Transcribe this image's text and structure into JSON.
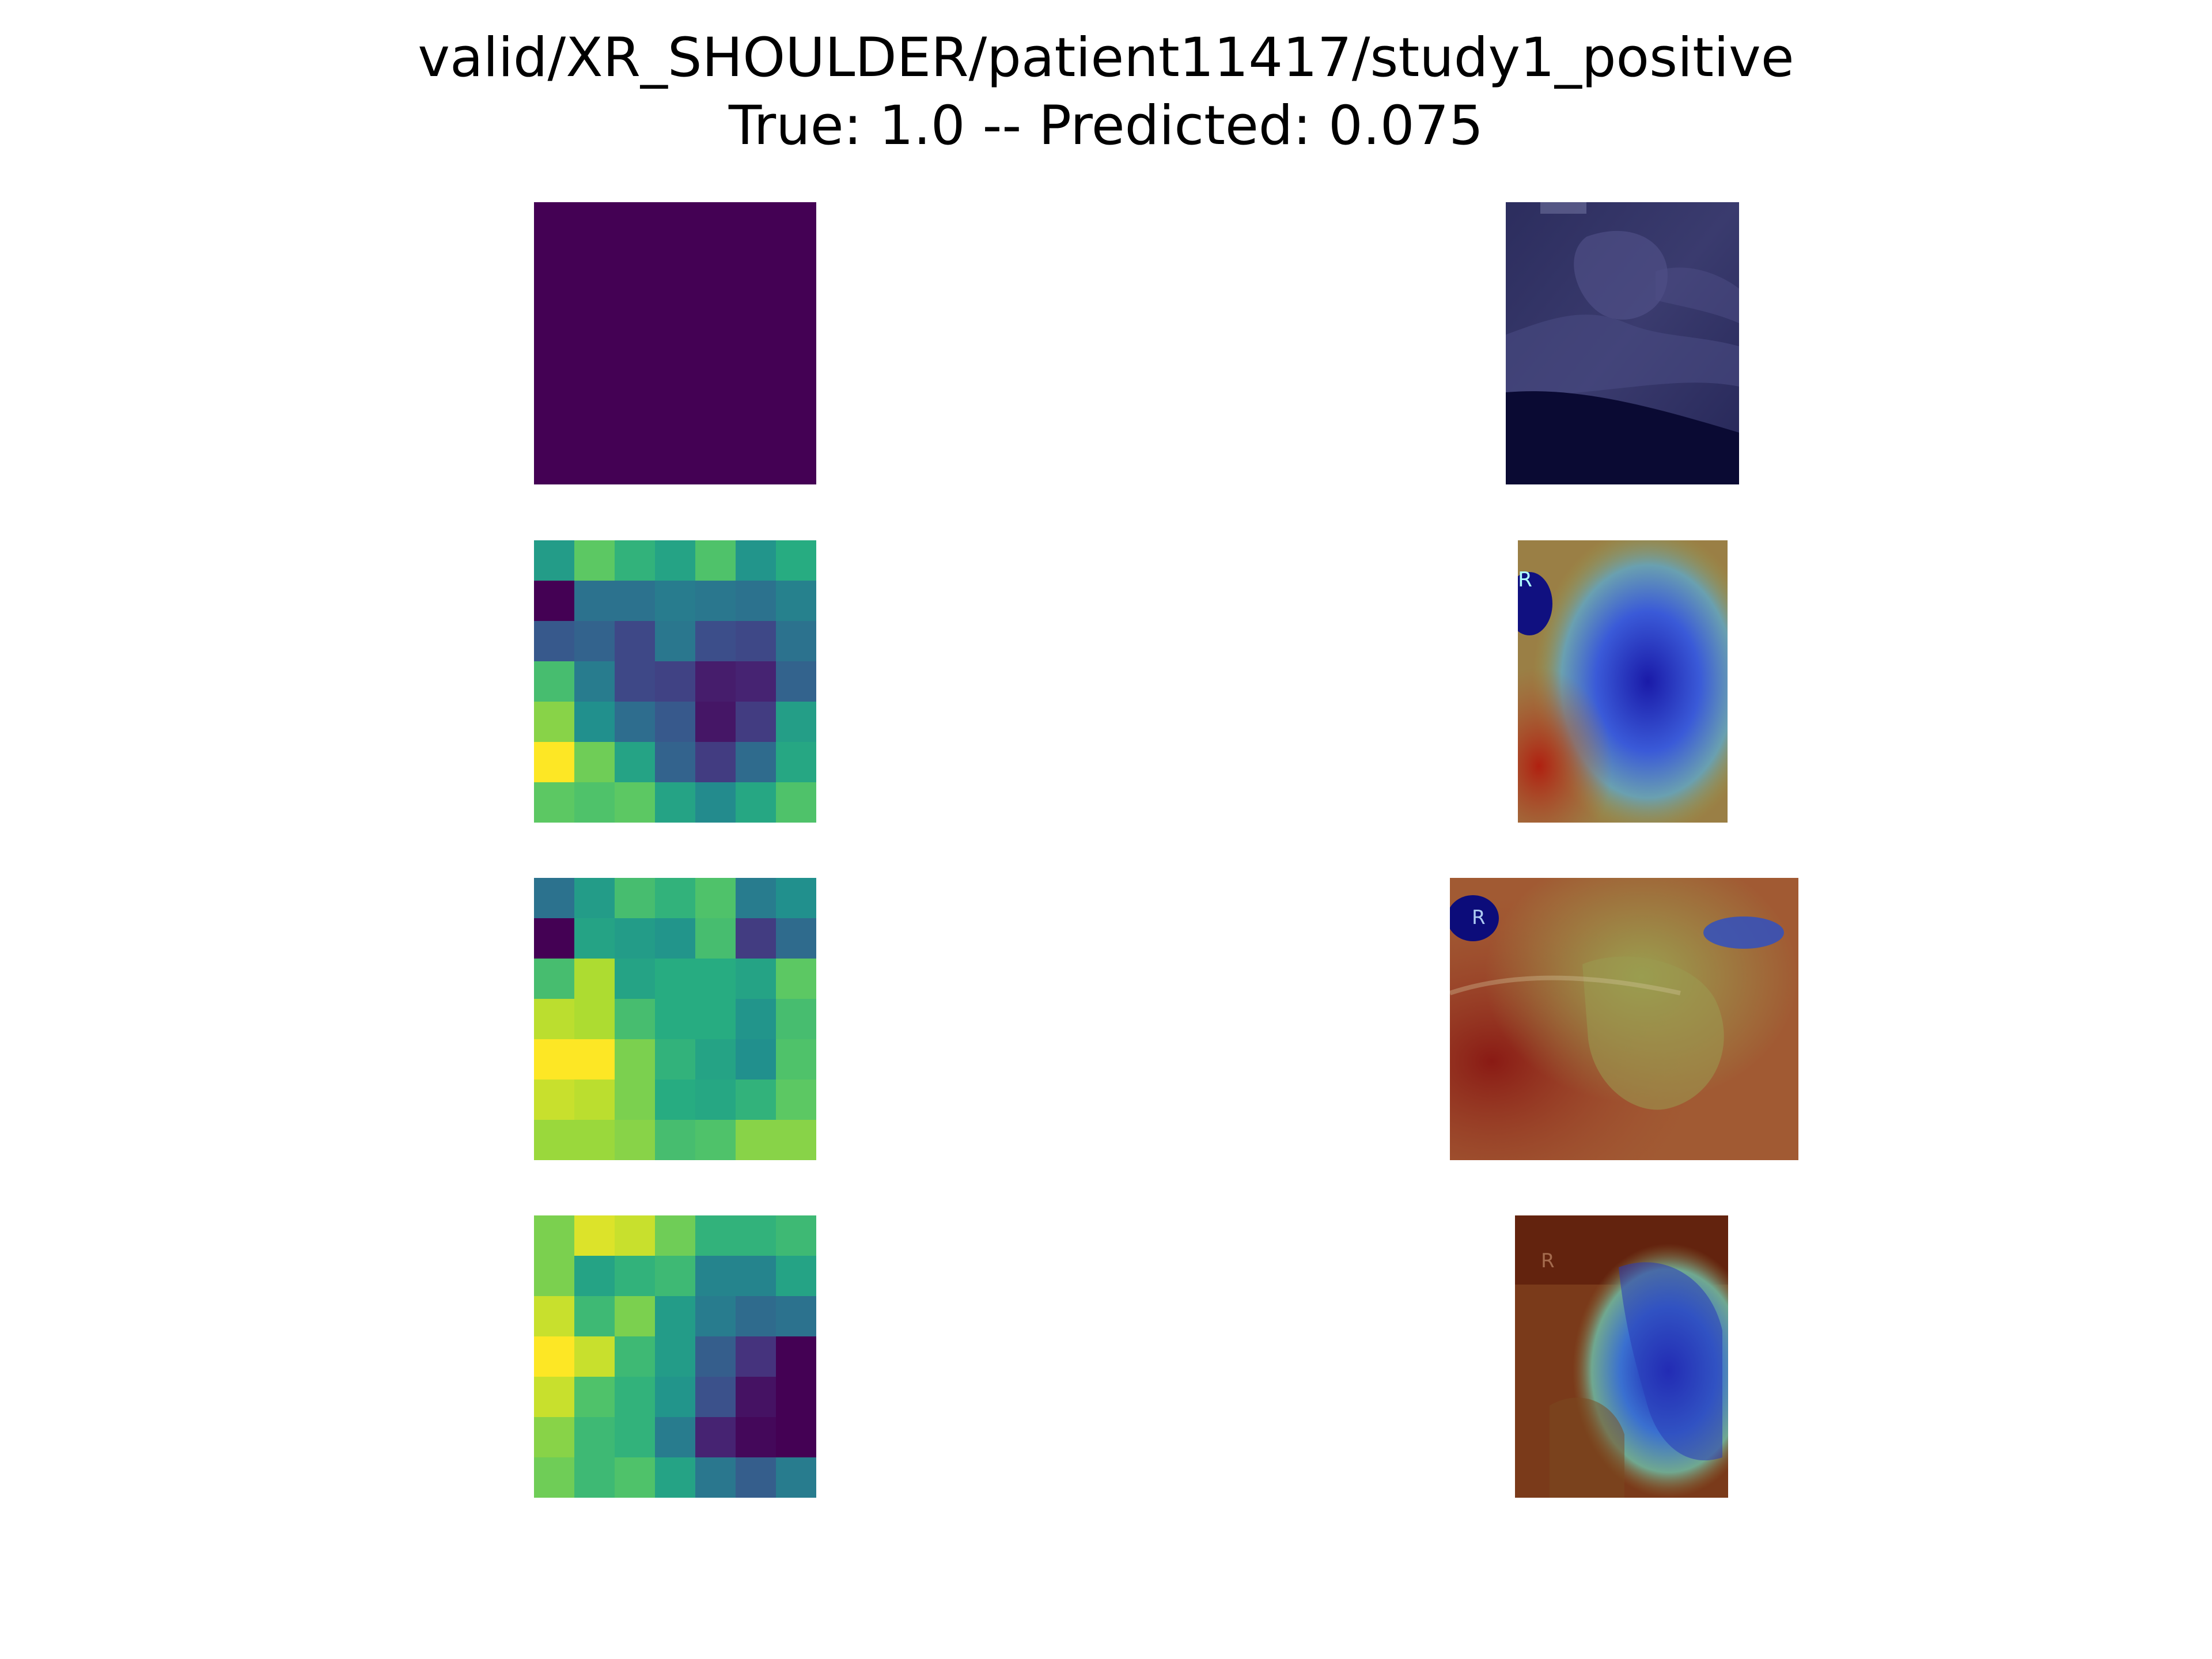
{
  "figure": {
    "title": "valid/XR_SHOULDER/patient11417/study1_positive",
    "subtitle": "True: 1.0 -- Predicted: 0.075"
  },
  "colormaps": {
    "heatmap": "viridis",
    "overlay": "jet"
  },
  "chart_data": [
    {
      "type": "heatmap",
      "row": 1,
      "colormap": "viridis",
      "vmin": 0,
      "vmax": 1,
      "values": [
        [
          0,
          0,
          0,
          0,
          0,
          0,
          0
        ],
        [
          0,
          0,
          0,
          0,
          0,
          0,
          0
        ],
        [
          0,
          0,
          0,
          0,
          0,
          0,
          0
        ],
        [
          0,
          0,
          0,
          0,
          0,
          0,
          0
        ],
        [
          0,
          0,
          0,
          0,
          0,
          0,
          0
        ],
        [
          0,
          0,
          0,
          0,
          0,
          0,
          0
        ],
        [
          0,
          0,
          0,
          0,
          0,
          0,
          0
        ]
      ]
    },
    {
      "type": "heatmap",
      "row": 2,
      "colormap": "viridis",
      "vmin": 0,
      "vmax": 1,
      "values": [
        [
          0.55,
          0.75,
          0.65,
          0.58,
          0.72,
          0.52,
          0.62
        ],
        [
          0.0,
          0.38,
          0.38,
          0.42,
          0.4,
          0.38,
          0.44
        ],
        [
          0.28,
          0.32,
          0.22,
          0.4,
          0.24,
          0.22,
          0.38
        ],
        [
          0.7,
          0.42,
          0.22,
          0.2,
          0.08,
          0.1,
          0.32
        ],
        [
          0.82,
          0.5,
          0.36,
          0.28,
          0.06,
          0.18,
          0.56
        ],
        [
          1.0,
          0.78,
          0.58,
          0.32,
          0.18,
          0.35,
          0.6
        ],
        [
          0.75,
          0.72,
          0.75,
          0.58,
          0.48,
          0.6,
          0.72
        ]
      ]
    },
    {
      "type": "heatmap",
      "row": 3,
      "colormap": "viridis",
      "vmin": 0,
      "vmax": 1,
      "values": [
        [
          0.38,
          0.55,
          0.7,
          0.65,
          0.72,
          0.42,
          0.5
        ],
        [
          0.0,
          0.58,
          0.55,
          0.52,
          0.7,
          0.18,
          0.35
        ],
        [
          0.7,
          0.88,
          0.58,
          0.62,
          0.62,
          0.58,
          0.75
        ],
        [
          0.9,
          0.88,
          0.7,
          0.62,
          0.62,
          0.52,
          0.7
        ],
        [
          1.0,
          1.0,
          0.8,
          0.65,
          0.58,
          0.5,
          0.72
        ],
        [
          0.92,
          0.9,
          0.8,
          0.62,
          0.6,
          0.65,
          0.75
        ],
        [
          0.85,
          0.85,
          0.82,
          0.7,
          0.72,
          0.82,
          0.82
        ]
      ]
    },
    {
      "type": "heatmap",
      "row": 4,
      "colormap": "viridis",
      "vmin": 0,
      "vmax": 1,
      "values": [
        [
          0.8,
          0.95,
          0.92,
          0.78,
          0.65,
          0.65,
          0.68
        ],
        [
          0.8,
          0.58,
          0.65,
          0.68,
          0.45,
          0.45,
          0.58
        ],
        [
          0.92,
          0.68,
          0.8,
          0.55,
          0.42,
          0.35,
          0.38
        ],
        [
          1.0,
          0.92,
          0.68,
          0.55,
          0.3,
          0.15,
          0.0
        ],
        [
          0.92,
          0.72,
          0.65,
          0.52,
          0.25,
          0.05,
          0.0
        ],
        [
          0.82,
          0.68,
          0.65,
          0.42,
          0.1,
          0.02,
          0.0
        ],
        [
          0.78,
          0.68,
          0.72,
          0.58,
          0.4,
          0.3,
          0.42
        ]
      ]
    }
  ]
}
